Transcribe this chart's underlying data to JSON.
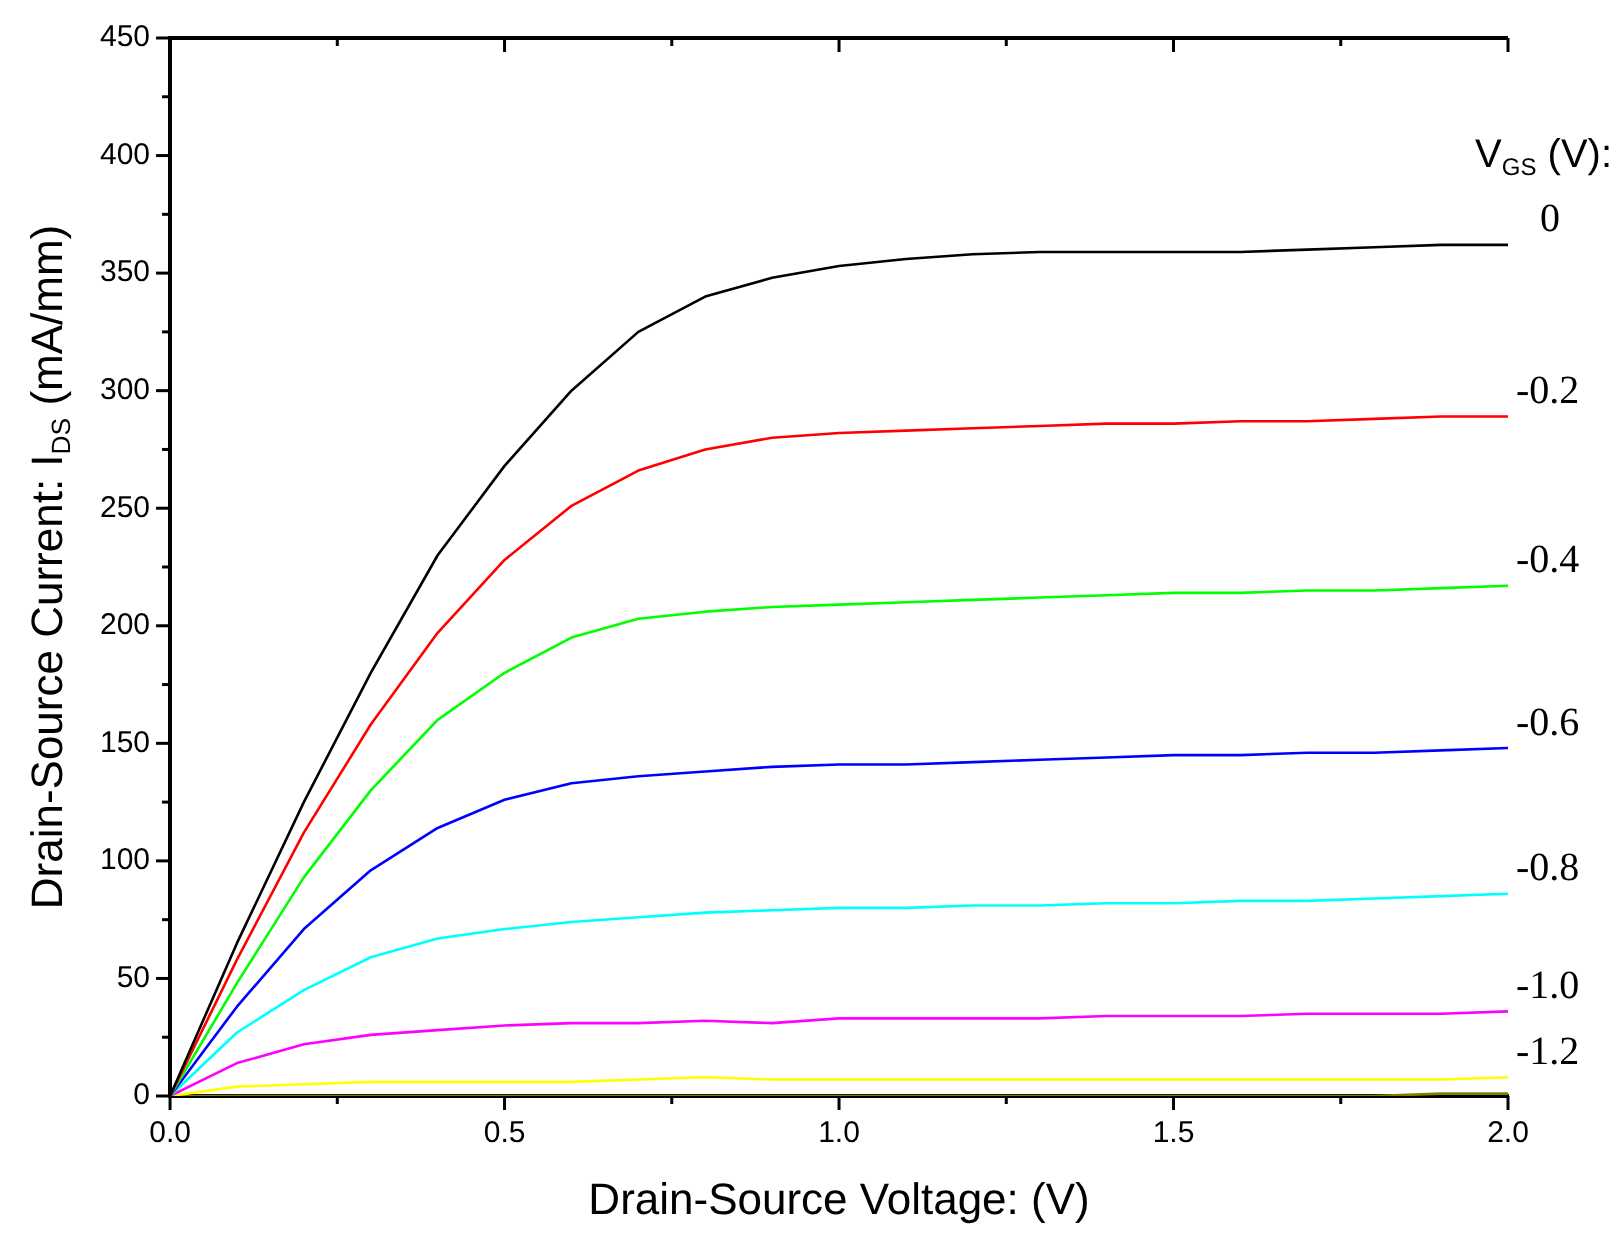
{
  "chart_data": {
    "type": "line",
    "xlabel": "Drain-Source Voltage: (V)",
    "ylabel": "Drain-Source Current: I$_{DS}$ (mA/mm)",
    "legend_title": "V$_{GS}$ (V):",
    "x": [
      0,
      0.1,
      0.2,
      0.3,
      0.4,
      0.5,
      0.6,
      0.7,
      0.8,
      0.9,
      1.0,
      1.1,
      1.2,
      1.3,
      1.4,
      1.5,
      1.6,
      1.7,
      1.8,
      1.9,
      2.0
    ],
    "series": [
      {
        "name": "0",
        "color": "#000000",
        "values": [
          0,
          65,
          125,
          180,
          230,
          268,
          300,
          325,
          340,
          348,
          353,
          356,
          358,
          359,
          359,
          359,
          359,
          360,
          361,
          362,
          362
        ]
      },
      {
        "name": "-0.2",
        "color": "#ff0000",
        "values": [
          0,
          58,
          112,
          158,
          197,
          228,
          251,
          266,
          275,
          280,
          282,
          283,
          284,
          285,
          286,
          286,
          287,
          287,
          288,
          289,
          289
        ]
      },
      {
        "name": "-0.4",
        "color": "#00ff00",
        "values": [
          0,
          48,
          93,
          130,
          160,
          180,
          195,
          203,
          206,
          208,
          209,
          210,
          211,
          212,
          213,
          214,
          214,
          215,
          215,
          216,
          217
        ]
      },
      {
        "name": "-0.6",
        "color": "#0000ff",
        "values": [
          0,
          38,
          71,
          96,
          114,
          126,
          133,
          136,
          138,
          140,
          141,
          141,
          142,
          143,
          144,
          145,
          145,
          146,
          146,
          147,
          148
        ]
      },
      {
        "name": "-0.8",
        "color": "#00ffff",
        "values": [
          0,
          27,
          45,
          59,
          67,
          71,
          74,
          76,
          78,
          79,
          80,
          80,
          81,
          81,
          82,
          82,
          83,
          83,
          84,
          85,
          86
        ]
      },
      {
        "name": "-1.0",
        "color": "#ff00ff",
        "values": [
          0,
          14,
          22,
          26,
          28,
          30,
          31,
          31,
          32,
          31,
          33,
          33,
          33,
          33,
          34,
          34,
          34,
          35,
          35,
          35,
          36
        ]
      },
      {
        "name": "-1.2",
        "color": "#ffff00",
        "values": [
          0,
          4,
          5,
          6,
          6,
          6,
          6,
          7,
          8,
          7,
          7,
          7,
          7,
          7,
          7,
          7,
          7,
          7,
          7,
          7,
          8
        ]
      },
      {
        "color": "#808000",
        "values": [
          0,
          0,
          0,
          0,
          0,
          0,
          0,
          0,
          0,
          0,
          0,
          0,
          0,
          0,
          0,
          0,
          0,
          0,
          0,
          1,
          1
        ]
      }
    ],
    "xlim": [
      0,
      2.0
    ],
    "xticks": [
      {
        "value": 0,
        "label": "0.0"
      },
      {
        "value": 0.25,
        "label": null
      },
      {
        "value": 0.5,
        "label": "0.5"
      },
      {
        "value": 0.75,
        "label": null
      },
      {
        "value": 1.0,
        "label": "1.0"
      },
      {
        "value": 1.25,
        "label": null
      },
      {
        "value": 1.5,
        "label": "1.5"
      },
      {
        "value": 1.75,
        "label": null
      },
      {
        "value": 2.0,
        "label": "2.0"
      }
    ],
    "ylim": [
      0,
      450
    ],
    "yticks": [
      0,
      {
        "value": 25,
        "label": null
      },
      50,
      {
        "value": 75,
        "label": null
      },
      100,
      {
        "value": 125,
        "label": null
      },
      150,
      {
        "value": 175,
        "label": null
      },
      200,
      {
        "value": 225,
        "label": null
      },
      250,
      {
        "value": 275,
        "label": null
      },
      300,
      {
        "value": 325,
        "label": null
      },
      350,
      {
        "value": 375,
        "label": null
      },
      400,
      {
        "value": 425,
        "label": null
      },
      450
    ],
    "grid": false,
    "legend": false,
    "marker": "none",
    "line_style": "solid"
  }
}
